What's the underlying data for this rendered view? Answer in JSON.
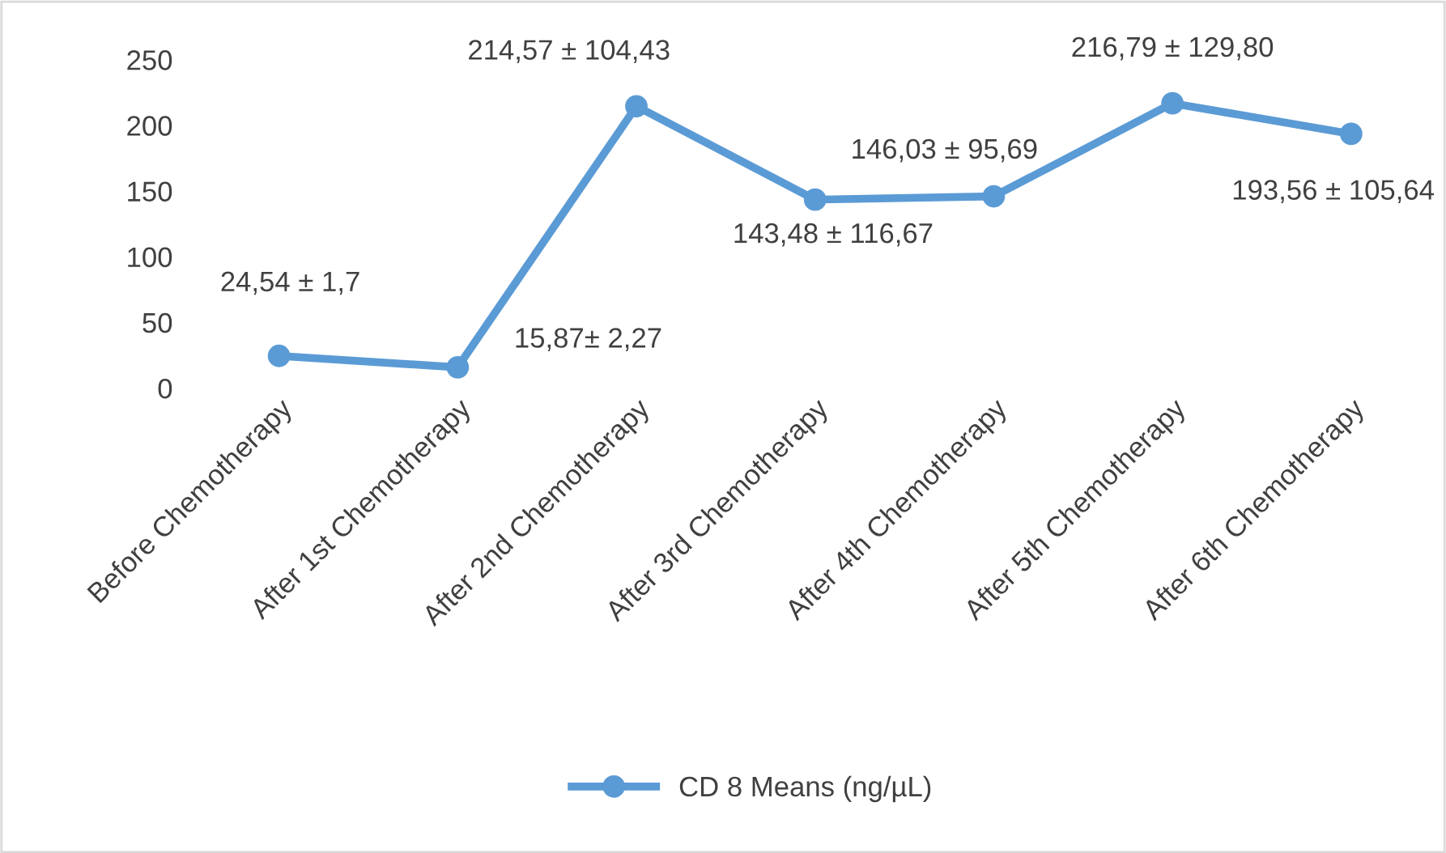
{
  "chart_data": {
    "type": "line",
    "categories": [
      "Before Chemotherapy",
      "After 1st Chemotherapy",
      "After 2nd Chemotherapy",
      "After 3rd Chemotherapy",
      "After 4th Chemotherapy",
      "After 5th Chemotherapy",
      "After 6th Chemotherapy"
    ],
    "series": [
      {
        "name": "CD 8 Means (ng/µL)",
        "color": "#5b9bd5",
        "values": [
          24.54,
          15.87,
          214.57,
          143.48,
          146.03,
          216.79,
          193.56
        ],
        "value_labels": [
          "24,54 ± 1,7",
          "15,87± 2,27",
          "214,57 ± 104,43",
          "143,48 ± 116,67",
          "146,03 ± 95,69",
          "216,79 ± 129,80",
          "193,56 ± 105,64"
        ]
      }
    ],
    "ylim": [
      0,
      250
    ],
    "yticks": [
      0,
      50,
      100,
      150,
      200,
      250
    ],
    "grid": false,
    "legend": "bottom",
    "marker": "circle",
    "line_style": "solid"
  }
}
